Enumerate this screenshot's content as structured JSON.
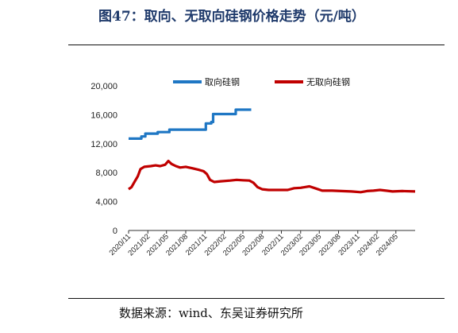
{
  "figure": {
    "title": "图47：取向、无取向硅钢价格走势（元/吨）",
    "source": "数据来源：wind、东吴证券研究所"
  },
  "colors": {
    "series_blue": "#1f77c4",
    "series_red": "#c00000",
    "title": "#1f3a6b"
  },
  "chart_data": {
    "type": "line",
    "title": "",
    "xlabel": "",
    "ylabel": "",
    "ylim": [
      0,
      20000
    ],
    "yticks": [
      0,
      4000,
      8000,
      12000,
      16000,
      20000
    ],
    "ytick_labels": [
      "0",
      "4,000",
      "8,000",
      "12,000",
      "16,000",
      "20,000"
    ],
    "xlim": [
      "2020-11",
      "2024-08"
    ],
    "xtick_labels": [
      "2020/11",
      "2021/02",
      "2021/05",
      "2021/08",
      "2021/11",
      "2022/02",
      "2022/05",
      "2022/08",
      "2022/11",
      "2023/02",
      "2023/05",
      "2023/08",
      "2023/11",
      "2024/02",
      "2024/05"
    ],
    "xticks": [
      "2020-11",
      "2021-02",
      "2021-05",
      "2021-08",
      "2021-11",
      "2022-02",
      "2022-05",
      "2022-08",
      "2022-11",
      "2023-02",
      "2023-05",
      "2023-08",
      "2023-11",
      "2024-02",
      "2024-05"
    ],
    "legend_position": "top",
    "grid": false,
    "series": [
      {
        "name": "取向硅钢",
        "color": "#1f77c4",
        "step": true,
        "points": [
          [
            "2020-11-01",
            12700
          ],
          [
            "2020-12-10",
            12700
          ],
          [
            "2021-01-01",
            13000
          ],
          [
            "2021-01-20",
            13400
          ],
          [
            "2021-03-10",
            13400
          ],
          [
            "2021-03-20",
            13600
          ],
          [
            "2021-05-05",
            13600
          ],
          [
            "2021-05-15",
            13950
          ],
          [
            "2021-10-28",
            13950
          ],
          [
            "2021-11-05",
            14800
          ],
          [
            "2021-12-01",
            15000
          ],
          [
            "2021-12-10",
            16100
          ],
          [
            "2022-03-20",
            16100
          ],
          [
            "2022-03-28",
            16700
          ],
          [
            "2022-06-10",
            16700
          ]
        ]
      },
      {
        "name": "无取向硅钢",
        "color": "#c00000",
        "step": false,
        "points": [
          [
            "2020-11-01",
            5700
          ],
          [
            "2020-11-15",
            6000
          ],
          [
            "2020-12-01",
            6800
          ],
          [
            "2020-12-15",
            7500
          ],
          [
            "2020-12-28",
            8500
          ],
          [
            "2021-01-15",
            8800
          ],
          [
            "2021-02-15",
            8900
          ],
          [
            "2021-03-10",
            9000
          ],
          [
            "2021-04-01",
            8900
          ],
          [
            "2021-04-25",
            9100
          ],
          [
            "2021-05-10",
            9600
          ],
          [
            "2021-05-25",
            9200
          ],
          [
            "2021-06-15",
            8900
          ],
          [
            "2021-07-05",
            8700
          ],
          [
            "2021-08-01",
            8800
          ],
          [
            "2021-09-01",
            8600
          ],
          [
            "2021-10-01",
            8400
          ],
          [
            "2021-10-25",
            8200
          ],
          [
            "2021-11-10",
            7800
          ],
          [
            "2021-11-25",
            7000
          ],
          [
            "2021-12-15",
            6700
          ],
          [
            "2022-01-15",
            6800
          ],
          [
            "2022-03-01",
            6900
          ],
          [
            "2022-04-01",
            7000
          ],
          [
            "2022-05-01",
            6950
          ],
          [
            "2022-06-01",
            6900
          ],
          [
            "2022-06-20",
            6600
          ],
          [
            "2022-07-10",
            6000
          ],
          [
            "2022-08-01",
            5700
          ],
          [
            "2022-09-01",
            5600
          ],
          [
            "2022-10-15",
            5600
          ],
          [
            "2022-12-01",
            5600
          ],
          [
            "2023-01-01",
            5850
          ],
          [
            "2023-02-01",
            5900
          ],
          [
            "2023-03-15",
            6100
          ],
          [
            "2023-04-15",
            5800
          ],
          [
            "2023-05-15",
            5500
          ],
          [
            "2023-07-01",
            5500
          ],
          [
            "2023-08-15",
            5450
          ],
          [
            "2023-10-01",
            5400
          ],
          [
            "2023-11-15",
            5300
          ],
          [
            "2023-12-15",
            5450
          ],
          [
            "2024-01-15",
            5500
          ],
          [
            "2024-02-15",
            5600
          ],
          [
            "2024-03-15",
            5500
          ],
          [
            "2024-04-15",
            5400
          ],
          [
            "2024-06-01",
            5450
          ],
          [
            "2024-08-01",
            5400
          ]
        ]
      }
    ]
  }
}
